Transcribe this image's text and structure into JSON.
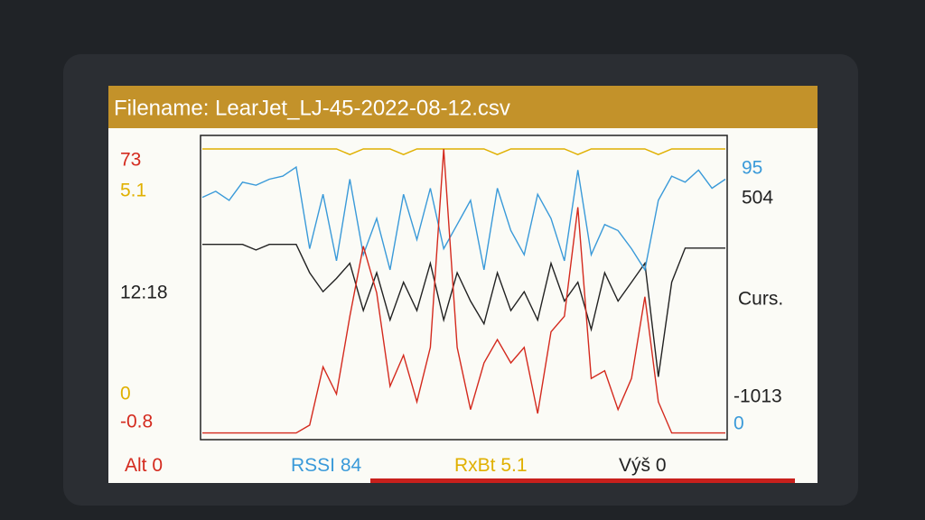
{
  "chart_data": {
    "type": "line",
    "title": "Filename: LearJet_LJ-45-2022-08-12.csv",
    "cursor_time": "12:18",
    "cursor_label": "Curs.",
    "categories": [
      null,
      null,
      null,
      null,
      null,
      null,
      null,
      null,
      null,
      null,
      null,
      null,
      null,
      null,
      null,
      null,
      null,
      null,
      null,
      null,
      null,
      null,
      null,
      null,
      null,
      null,
      null,
      null,
      null,
      null,
      null,
      null,
      null,
      null,
      null,
      null,
      null,
      null,
      null,
      null
    ],
    "series": [
      {
        "name": "Alt",
        "cursor_value": 0,
        "color": "#d42a1e",
        "ylim": [
          -0.8,
          73
        ],
        "values": [
          0,
          0,
          0,
          0,
          0,
          0,
          0,
          0,
          2,
          17,
          10,
          30,
          48,
          36,
          12,
          20,
          8,
          22,
          73,
          22,
          6,
          18,
          24,
          18,
          22,
          5,
          26,
          30,
          58,
          14,
          16,
          6,
          14,
          35,
          8,
          0,
          0,
          0,
          0,
          0
        ]
      },
      {
        "name": "RSSI",
        "cursor_value": 84,
        "color": "#3a9ad9",
        "ylim": [
          0,
          95
        ],
        "values": [
          79,
          81,
          78,
          84,
          83,
          85,
          86,
          89,
          62,
          80,
          58,
          85,
          60,
          72,
          55,
          80,
          65,
          82,
          62,
          70,
          78,
          55,
          82,
          68,
          60,
          80,
          72,
          58,
          88,
          60,
          70,
          68,
          62,
          55,
          78,
          86,
          84,
          88,
          82,
          85
        ]
      },
      {
        "name": "RxBt",
        "cursor_value": 5.1,
        "color": "#e0b000",
        "ylim": [
          0,
          5.1
        ],
        "values": [
          5.1,
          5.1,
          5.1,
          5.1,
          5.1,
          5.1,
          5.1,
          5.1,
          5.1,
          5.1,
          5.1,
          5.0,
          5.1,
          5.1,
          5.1,
          5.0,
          5.1,
          5.1,
          5.1,
          5.1,
          5.1,
          5.1,
          5.0,
          5.1,
          5.1,
          5.1,
          5.1,
          5.1,
          5.0,
          5.1,
          5.1,
          5.1,
          5.1,
          5.1,
          5.0,
          5.1,
          5.1,
          5.1,
          5.1,
          5.1
        ]
      },
      {
        "name": "Výš",
        "cursor_value": 0,
        "color": "#222222",
        "ylim": [
          -1013,
          504
        ],
        "values": [
          0,
          0,
          0,
          0,
          -30,
          0,
          0,
          0,
          -150,
          -250,
          -180,
          -100,
          -350,
          -150,
          -400,
          -200,
          -350,
          -100,
          -400,
          -150,
          -300,
          -420,
          -150,
          -350,
          -250,
          -400,
          -100,
          -300,
          -200,
          -450,
          -150,
          -300,
          -200,
          -100,
          -700,
          -200,
          -20,
          -20,
          -20,
          -20
        ]
      }
    ]
  }
}
